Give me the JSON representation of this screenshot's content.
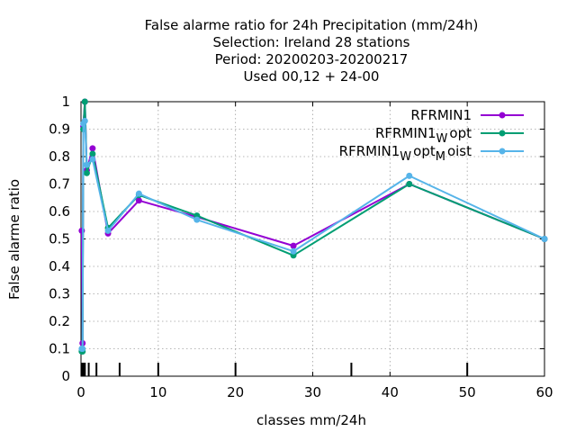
{
  "chart_data": {
    "type": "line",
    "title_lines": [
      "False alarme ratio  for 24h Precipitation (mm/24h)",
      "Selection: Ireland      28 stations",
      "Period: 20200203-20200217",
      "Used  00,12  + 24-00"
    ],
    "xlabel": "classes mm/24h",
    "ylabel": "False alarme ratio",
    "xlim": [
      0,
      60
    ],
    "ylim": [
      0,
      1
    ],
    "xticks": [
      0,
      10,
      20,
      30,
      40,
      50,
      60
    ],
    "yticks": [
      0,
      0.1,
      0.2,
      0.3,
      0.4,
      0.5,
      0.6,
      0.7,
      0.8,
      0.9,
      1
    ],
    "ytick_labels": [
      "0",
      "0.1",
      "0.2",
      "0.3",
      "0.4",
      "0.5",
      "0.6",
      "0.7",
      "0.8",
      "0.9",
      "1"
    ],
    "grid": true,
    "legend_position": "top-right",
    "class_marks": [
      0.1,
      0.2,
      0.3,
      0.5,
      1,
      2,
      5,
      10,
      20,
      35,
      50
    ],
    "series": [
      {
        "legend_main": "RFRMIN1",
        "legend_subs": [],
        "color": "#9400d3",
        "x": [
          0.1,
          0.2,
          0.3,
          0.5,
          0.75,
          1.5,
          3.5,
          7.5,
          15,
          27.5,
          42.5,
          60
        ],
        "y": [
          0.53,
          0.12,
          0.91,
          1.0,
          0.75,
          0.83,
          0.52,
          0.64,
          0.58,
          0.475,
          0.7,
          0.5
        ]
      },
      {
        "legend_main": "RFRMIN1",
        "legend_subs": [
          "W",
          "opt"
        ],
        "color": "#009e73",
        "x": [
          0.1,
          0.2,
          0.3,
          0.5,
          0.75,
          1.5,
          3.5,
          7.5,
          15,
          27.5,
          42.5,
          60
        ],
        "y": [
          0.09,
          0.09,
          0.9,
          1.0,
          0.74,
          0.81,
          0.54,
          0.66,
          0.585,
          0.44,
          0.7,
          0.5
        ]
      },
      {
        "legend_main": "RFRMIN1",
        "legend_subs": [
          "W",
          "opt",
          "M",
          "oist"
        ],
        "color": "#56b4e9",
        "x": [
          0.1,
          0.2,
          0.3,
          0.5,
          0.75,
          1.5,
          3.5,
          7.5,
          15,
          27.5,
          42.5,
          60
        ],
        "y": [
          0.1,
          0.1,
          0.92,
          0.93,
          0.77,
          0.79,
          0.53,
          0.665,
          0.57,
          0.455,
          0.73,
          0.5
        ]
      }
    ]
  }
}
